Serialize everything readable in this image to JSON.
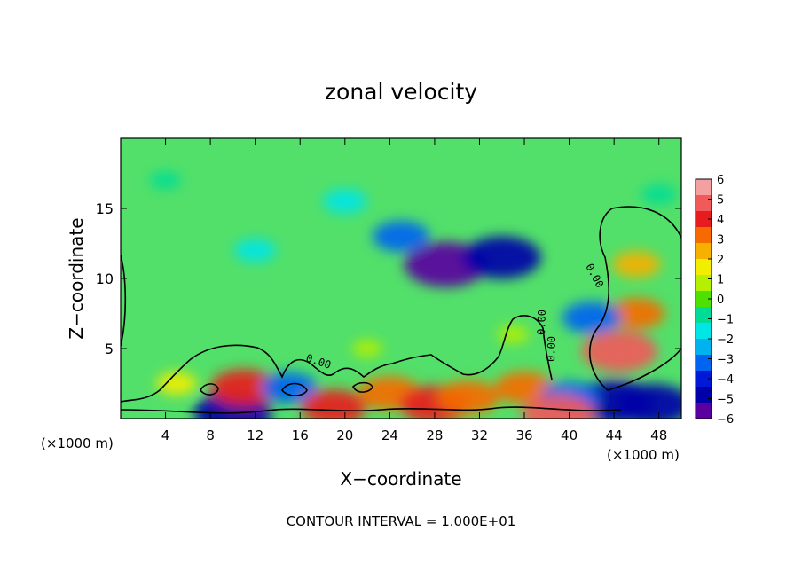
{
  "chart_data": {
    "type": "heatmap",
    "title": "zonal velocity",
    "xlabel": "X−coordinate",
    "ylabel": "Z−coordinate",
    "x_unit_left": "(×1000 m)",
    "x_unit_right": "(×1000 m)",
    "footer": "CONTOUR INTERVAL = 1.000E+01",
    "xlim": [
      0,
      50
    ],
    "ylim": [
      0,
      20
    ],
    "x_ticks": [
      4,
      8,
      12,
      16,
      20,
      24,
      28,
      32,
      36,
      40,
      44,
      48
    ],
    "y_ticks": [
      5,
      10,
      15
    ],
    "contour_label_values": [
      "0.00",
      "0.00",
      "0.00",
      "0.00"
    ],
    "colorbar": {
      "min": -6,
      "max": 6,
      "ticks": [
        6,
        5,
        4,
        3,
        2,
        1,
        0,
        -1,
        -2,
        -3,
        -4,
        -5,
        -6
      ],
      "colors": [
        "#f4a0a0",
        "#f05a5a",
        "#e81c1c",
        "#f56b00",
        "#f5b000",
        "#f2ee00",
        "#b4f000",
        "#4ee000",
        "#00dc96",
        "#00e5e5",
        "#00b2ee",
        "#0064f0",
        "#0018d8",
        "#0000a8",
        "#5a00a0"
      ]
    },
    "features": [
      {
        "x": 29,
        "z": 11.0,
        "value": -5.5
      },
      {
        "x": 34,
        "z": 11.5,
        "value": -5.0
      },
      {
        "x": 25,
        "z": 13.0,
        "value": -3.0
      },
      {
        "x": 20,
        "z": 15.5,
        "value": -1.8
      },
      {
        "x": 12,
        "z": 12.0,
        "value": -1.6
      },
      {
        "x": 4,
        "z": 17.0,
        "value": -0.6
      },
      {
        "x": 44.5,
        "z": 4.8,
        "value": 4.8
      },
      {
        "x": 46,
        "z": 7.5,
        "value": 3.0
      },
      {
        "x": 46,
        "z": 11.0,
        "value": 2.2
      },
      {
        "x": 42,
        "z": 7.2,
        "value": -3.2
      },
      {
        "x": 44,
        "z": 1.2,
        "value": -5.2
      },
      {
        "x": 47.5,
        "z": 1.0,
        "value": -4.8
      },
      {
        "x": 10,
        "z": 0.4,
        "value": -5.0
      },
      {
        "x": 11,
        "z": 2.2,
        "value": 4.0
      },
      {
        "x": 15,
        "z": 2.2,
        "value": -3.0
      },
      {
        "x": 19,
        "z": 0.8,
        "value": 3.8
      },
      {
        "x": 24,
        "z": 1.8,
        "value": 3.5
      },
      {
        "x": 28,
        "z": 1.0,
        "value": 4.2
      },
      {
        "x": 31,
        "z": 1.5,
        "value": 3.5
      },
      {
        "x": 36,
        "z": 2.2,
        "value": 3.2
      },
      {
        "x": 40,
        "z": 1.5,
        "value": -3.2
      },
      {
        "x": 39,
        "z": 0.3,
        "value": 4.5
      },
      {
        "x": 5,
        "z": 2.5,
        "value": 1.5
      },
      {
        "x": 35,
        "z": 6.0,
        "value": 0.6
      },
      {
        "x": 22,
        "z": 5.0,
        "value": 0.5
      },
      {
        "x": 48,
        "z": 16.0,
        "value": -1.0
      }
    ]
  }
}
